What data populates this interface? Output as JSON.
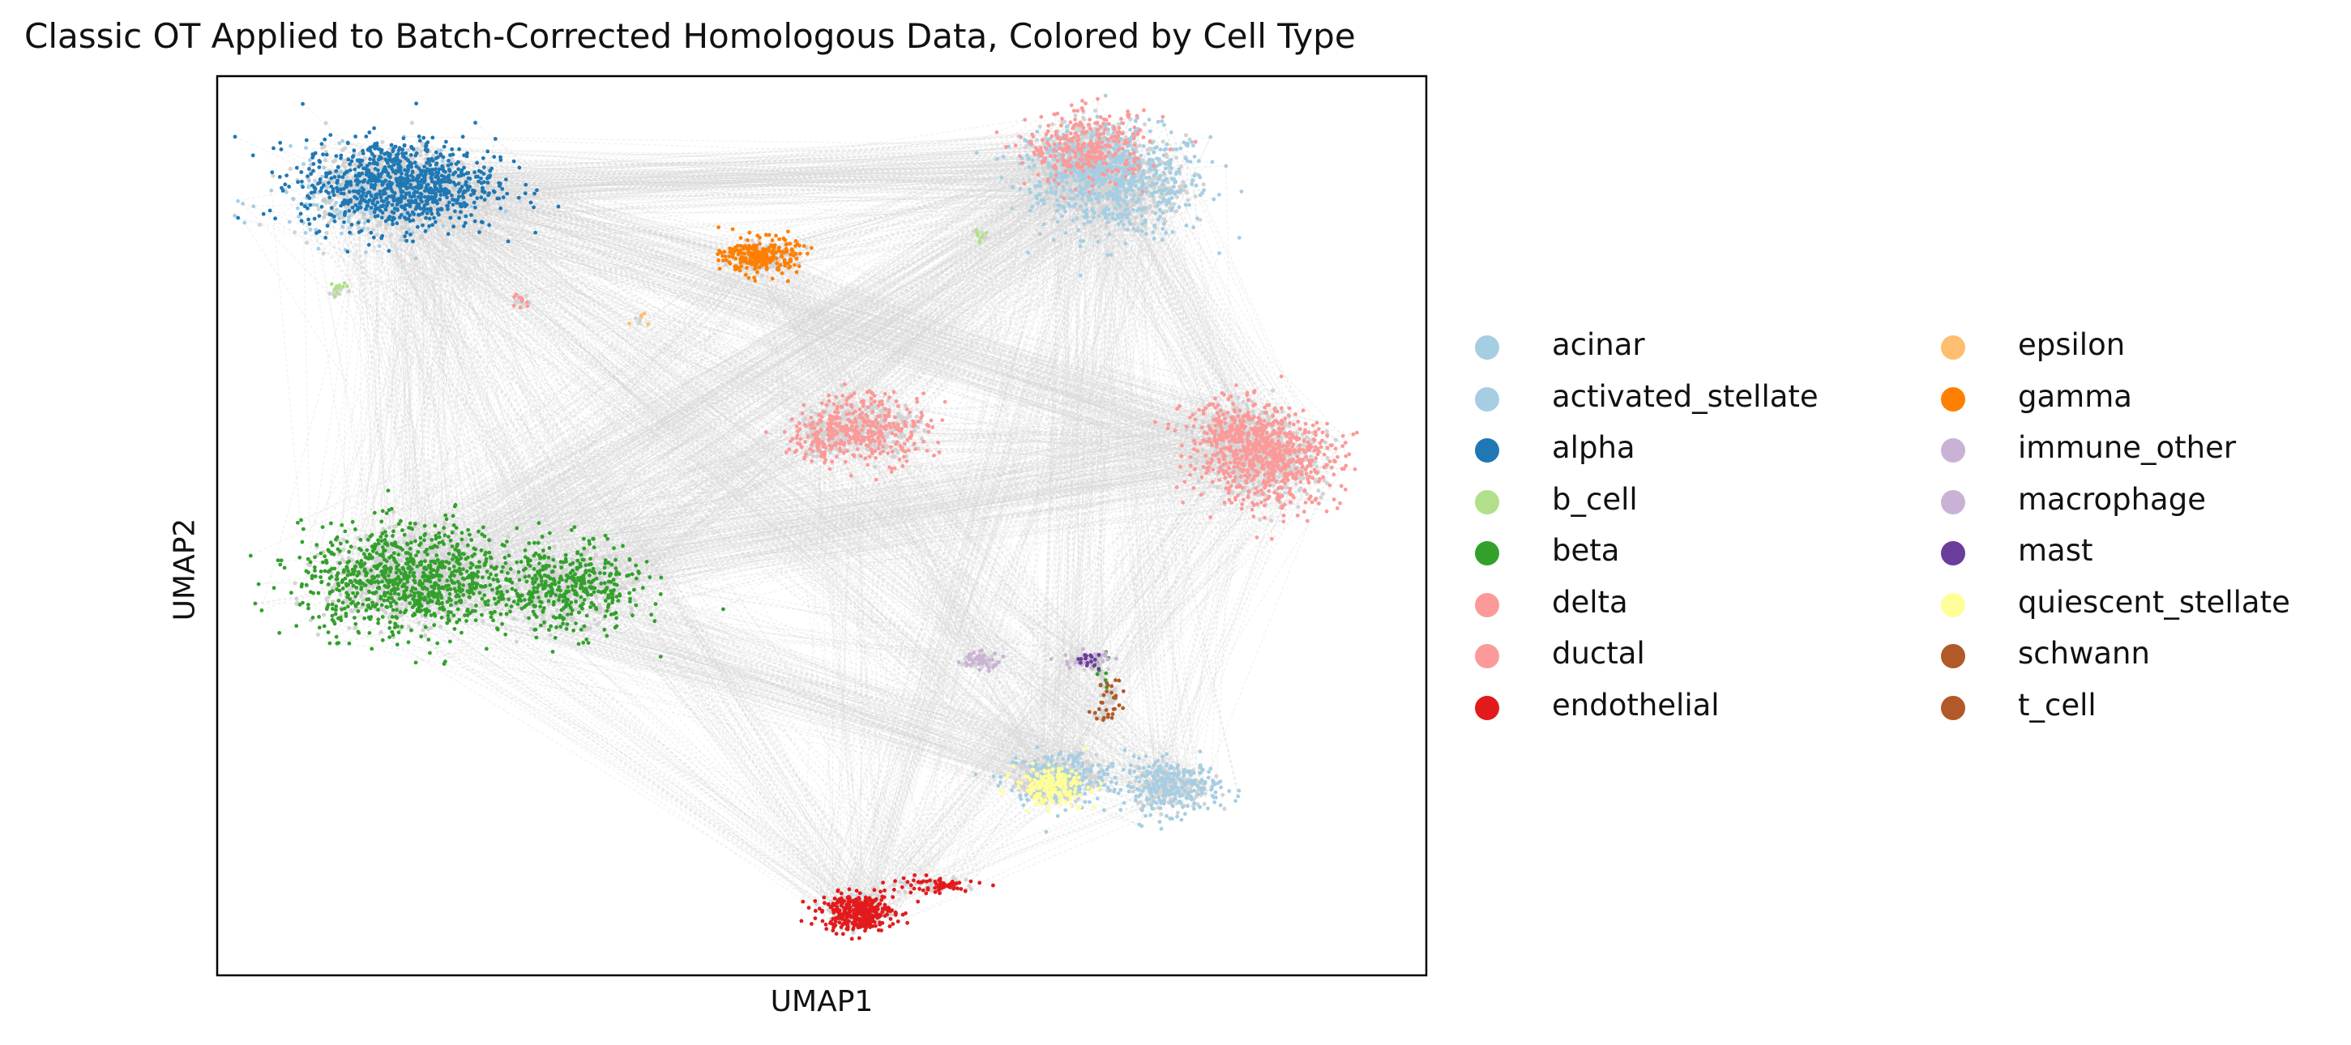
{
  "chart_data": {
    "type": "scatter",
    "title": "Classic OT Applied to Batch-Corrected Homologous Data, Colored by Cell Type",
    "xlabel": "UMAP1",
    "ylabel": "UMAP2",
    "xlim": [
      0,
      100
    ],
    "ylim": [
      0,
      100
    ],
    "x_ticks": false,
    "y_ticks": false,
    "grid": false,
    "legend_placement": "right, two columns",
    "overlay": "gray dashed line segments (OT couplings) connecting grey query points to colored reference cells",
    "overlay_color": "#d3d3d3",
    "series": [
      {
        "name": "acinar",
        "color": "#a6cee3",
        "clusters": [
          [
            75,
            88,
            7,
            6,
            500
          ],
          [
            70,
            22,
            5,
            3,
            200
          ]
        ]
      },
      {
        "name": "activated_stellate",
        "color": "#a6cee3",
        "clusters": [
          [
            72,
            90,
            5,
            4,
            300
          ],
          [
            79,
            21,
            4,
            3,
            250
          ],
          [
            12,
            86,
            8,
            5,
            150
          ]
        ]
      },
      {
        "name": "alpha",
        "color": "#1f78b4",
        "clusters": [
          [
            15,
            88,
            8,
            5,
            900
          ]
        ]
      },
      {
        "name": "b_cell",
        "color": "#b2df8a",
        "clusters": [
          [
            10,
            76,
            1,
            1,
            10
          ],
          [
            63,
            82,
            1,
            1,
            8
          ]
        ]
      },
      {
        "name": "beta",
        "color": "#33a02c",
        "clusters": [
          [
            16,
            44,
            9,
            6,
            900
          ],
          [
            29,
            43,
            6,
            5,
            400
          ],
          [
            73,
            34,
            1,
            2,
            15
          ]
        ]
      },
      {
        "name": "delta",
        "color": "#fb9a99",
        "clusters": [
          [
            54,
            61,
            5,
            4,
            300
          ],
          [
            87,
            57,
            6,
            5,
            500
          ]
        ]
      },
      {
        "name": "ductal",
        "color": "#fb9a99",
        "clusters": [
          [
            72,
            92,
            5,
            4,
            300
          ],
          [
            85,
            60,
            5,
            4,
            300
          ],
          [
            50,
            60,
            3,
            3,
            100
          ],
          [
            25,
            75,
            1,
            1,
            10
          ]
        ]
      },
      {
        "name": "endothelial",
        "color": "#e31a1c",
        "clusters": [
          [
            53,
            7,
            3,
            2,
            350
          ],
          [
            59,
            10,
            4,
            1,
            60
          ]
        ]
      },
      {
        "name": "epsilon",
        "color": "#fdbf6f",
        "clusters": [
          [
            35,
            73,
            1,
            1,
            5
          ]
        ]
      },
      {
        "name": "gamma",
        "color": "#ff7f00",
        "clusters": [
          [
            45,
            80,
            3,
            2,
            250
          ]
        ]
      },
      {
        "name": "immune_other",
        "color": "#cab2d6",
        "clusters": [
          [
            63,
            35,
            2,
            1,
            40
          ]
        ]
      },
      {
        "name": "macrophage",
        "color": "#cab2d6",
        "clusters": [
          [
            72,
            35,
            2,
            1,
            40
          ]
        ]
      },
      {
        "name": "mast",
        "color": "#6a3d9a",
        "clusters": [
          [
            72,
            35,
            1,
            1,
            15
          ]
        ]
      },
      {
        "name": "quiescent_stellate",
        "color": "#ffff99",
        "clusters": [
          [
            69,
            21,
            3,
            2,
            200
          ]
        ]
      },
      {
        "name": "schwann",
        "color": "#b15928",
        "clusters": [
          [
            74,
            31,
            1,
            2,
            20
          ]
        ]
      },
      {
        "name": "t_cell",
        "color": "#b15928",
        "clusters": [
          [
            73,
            29,
            1,
            1,
            10
          ]
        ]
      }
    ],
    "cluster_fields": [
      "center_x",
      "center_y",
      "spread_x",
      "spread_y",
      "n_points"
    ]
  }
}
